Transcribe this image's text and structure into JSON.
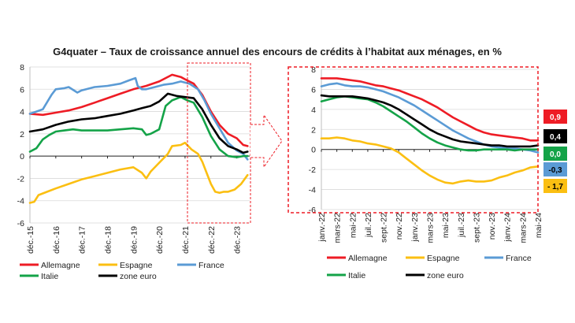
{
  "chart_data": [
    {
      "type": "line",
      "title": "G4quater – Taux de croissance annuel des encours de crédits à l’habitat aux ménages, en %",
      "panel": "left",
      "xlabel": "",
      "ylabel": "",
      "ylim": [
        -6,
        8
      ],
      "yticks": [
        -6,
        -4,
        -2,
        0,
        2,
        4,
        6,
        8
      ],
      "xlim": [
        0,
        102
      ],
      "x_tick_positions": [
        0,
        12,
        24,
        36,
        48,
        60,
        72,
        84,
        96
      ],
      "x_tick_labels": [
        "déc.-15",
        "déc.-16",
        "déc.-17",
        "déc.-18",
        "déc.-19",
        "déc.-20",
        "déc.-21",
        "déc.-22",
        "déc.-23"
      ],
      "series": [
        {
          "name": "Allemagne",
          "color": "#ee1c25",
          "points": [
            [
              0,
              3.8
            ],
            [
              6,
              3.7
            ],
            [
              12,
              3.9
            ],
            [
              18,
              4.1
            ],
            [
              24,
              4.4
            ],
            [
              30,
              4.8
            ],
            [
              36,
              5.2
            ],
            [
              42,
              5.6
            ],
            [
              48,
              6.0
            ],
            [
              54,
              6.3
            ],
            [
              60,
              6.7
            ],
            [
              63,
              7.0
            ],
            [
              66,
              7.3
            ],
            [
              70,
              7.1
            ],
            [
              72,
              6.9
            ],
            [
              76,
              6.5
            ],
            [
              80,
              5.5
            ],
            [
              84,
              4.0
            ],
            [
              88,
              2.8
            ],
            [
              92,
              2.0
            ],
            [
              96,
              1.6
            ],
            [
              99,
              1.0
            ],
            [
              101,
              0.9
            ]
          ]
        },
        {
          "name": "Espagne",
          "color": "#fbbf12",
          "points": [
            [
              0,
              -4.2
            ],
            [
              2,
              -4.1
            ],
            [
              4,
              -3.5
            ],
            [
              8,
              -3.2
            ],
            [
              12,
              -2.9
            ],
            [
              18,
              -2.5
            ],
            [
              24,
              -2.1
            ],
            [
              30,
              -1.8
            ],
            [
              36,
              -1.5
            ],
            [
              42,
              -1.2
            ],
            [
              48,
              -1.0
            ],
            [
              52,
              -1.5
            ],
            [
              54,
              -2.0
            ],
            [
              56,
              -1.4
            ],
            [
              60,
              -0.6
            ],
            [
              64,
              0.2
            ],
            [
              66,
              0.9
            ],
            [
              70,
              1.0
            ],
            [
              72,
              1.2
            ],
            [
              75,
              0.6
            ],
            [
              78,
              0.2
            ],
            [
              80,
              -0.5
            ],
            [
              82,
              -1.5
            ],
            [
              84,
              -2.5
            ],
            [
              86,
              -3.2
            ],
            [
              88,
              -3.3
            ],
            [
              90,
              -3.2
            ],
            [
              92,
              -3.2
            ],
            [
              95,
              -3.0
            ],
            [
              98,
              -2.5
            ],
            [
              101,
              -1.7
            ]
          ]
        },
        {
          "name": "France",
          "color": "#5b9bd5",
          "points": [
            [
              0,
              3.8
            ],
            [
              3,
              4.0
            ],
            [
              6,
              4.2
            ],
            [
              10,
              5.5
            ],
            [
              12,
              6.0
            ],
            [
              16,
              6.1
            ],
            [
              18,
              6.2
            ],
            [
              22,
              5.7
            ],
            [
              24,
              5.9
            ],
            [
              30,
              6.2
            ],
            [
              36,
              6.3
            ],
            [
              42,
              6.5
            ],
            [
              46,
              6.8
            ],
            [
              49,
              7.0
            ],
            [
              50,
              6.3
            ],
            [
              52,
              6.0
            ],
            [
              54,
              6.0
            ],
            [
              58,
              6.2
            ],
            [
              62,
              6.4
            ],
            [
              66,
              6.5
            ],
            [
              70,
              6.7
            ],
            [
              74,
              6.5
            ],
            [
              78,
              6.0
            ],
            [
              81,
              5.0
            ],
            [
              84,
              3.8
            ],
            [
              88,
              2.5
            ],
            [
              92,
              1.2
            ],
            [
              96,
              0.5
            ],
            [
              99,
              0.2
            ],
            [
              101,
              -0.3
            ]
          ]
        },
        {
          "name": "Italie",
          "color": "#14a348",
          "points": [
            [
              0,
              0.4
            ],
            [
              3,
              0.7
            ],
            [
              6,
              1.5
            ],
            [
              9,
              1.9
            ],
            [
              12,
              2.2
            ],
            [
              16,
              2.3
            ],
            [
              20,
              2.4
            ],
            [
              24,
              2.3
            ],
            [
              30,
              2.3
            ],
            [
              36,
              2.3
            ],
            [
              42,
              2.4
            ],
            [
              48,
              2.5
            ],
            [
              52,
              2.4
            ],
            [
              54,
              1.9
            ],
            [
              56,
              2.0
            ],
            [
              60,
              2.4
            ],
            [
              63,
              4.5
            ],
            [
              66,
              5.0
            ],
            [
              70,
              5.3
            ],
            [
              73,
              5.0
            ],
            [
              76,
              4.8
            ],
            [
              80,
              3.5
            ],
            [
              84,
              1.8
            ],
            [
              88,
              0.6
            ],
            [
              92,
              0.0
            ],
            [
              96,
              -0.1
            ],
            [
              99,
              0.0
            ],
            [
              101,
              0.0
            ]
          ]
        },
        {
          "name": "zone euro",
          "color": "#000000",
          "points": [
            [
              0,
              2.2
            ],
            [
              6,
              2.4
            ],
            [
              12,
              2.8
            ],
            [
              18,
              3.1
            ],
            [
              24,
              3.3
            ],
            [
              30,
              3.4
            ],
            [
              36,
              3.6
            ],
            [
              42,
              3.8
            ],
            [
              48,
              4.1
            ],
            [
              52,
              4.3
            ],
            [
              56,
              4.5
            ],
            [
              60,
              4.9
            ],
            [
              64,
              5.6
            ],
            [
              68,
              5.4
            ],
            [
              72,
              5.3
            ],
            [
              76,
              5.2
            ],
            [
              80,
              4.2
            ],
            [
              84,
              2.8
            ],
            [
              88,
              1.6
            ],
            [
              92,
              0.9
            ],
            [
              96,
              0.6
            ],
            [
              99,
              0.3
            ],
            [
              101,
              0.4
            ]
          ]
        }
      ],
      "legend": [
        "Allemagne",
        "Espagne",
        "France",
        "Italie",
        "zone euro"
      ]
    },
    {
      "type": "line",
      "panel": "right",
      "xlabel": "",
      "ylabel": "",
      "ylim": [
        -6,
        8
      ],
      "yticks": [
        -6,
        -4,
        -2,
        0,
        2,
        4,
        6,
        8
      ],
      "xlim": [
        0,
        28
      ],
      "x_tick_positions": [
        0,
        2,
        4,
        6,
        8,
        10,
        12,
        14,
        16,
        18,
        20,
        22,
        24,
        26,
        28
      ],
      "x_tick_labels": [
        "janv.-22",
        "mars-22",
        "mai-22",
        "juil.-22",
        "sept.-22",
        "nov.-22",
        "janv.-23",
        "mars-23",
        "mai-23",
        "juil.-23",
        "sept.-23",
        "nov.-23",
        "janv.-24",
        "mars-24",
        "mai-24"
      ],
      "series": [
        {
          "name": "Allemagne",
          "color": "#ee1c25",
          "last_value": "0,9",
          "values": [
            7.1,
            7.1,
            7.1,
            7.0,
            6.9,
            6.8,
            6.6,
            6.4,
            6.3,
            6.1,
            5.9,
            5.6,
            5.3,
            5.0,
            4.6,
            4.2,
            3.7,
            3.2,
            2.8,
            2.4,
            2.0,
            1.7,
            1.5,
            1.4,
            1.3,
            1.2,
            1.1,
            0.9,
            0.9
          ]
        },
        {
          "name": "Espagne",
          "color": "#fbbf12",
          "last_value": "- 1,7",
          "values": [
            1.1,
            1.1,
            1.2,
            1.1,
            0.9,
            0.8,
            0.6,
            0.5,
            0.3,
            0.1,
            -0.3,
            -0.9,
            -1.5,
            -2.1,
            -2.6,
            -3.0,
            -3.3,
            -3.4,
            -3.2,
            -3.1,
            -3.2,
            -3.2,
            -3.1,
            -2.8,
            -2.6,
            -2.3,
            -2.1,
            -1.8,
            -1.7
          ]
        },
        {
          "name": "France",
          "color": "#5b9bd5",
          "last_value": "-0,3",
          "values": [
            6.3,
            6.5,
            6.6,
            6.4,
            6.3,
            6.3,
            6.2,
            6.0,
            5.8,
            5.5,
            5.2,
            4.8,
            4.4,
            3.9,
            3.4,
            2.9,
            2.4,
            1.9,
            1.5,
            1.1,
            0.8,
            0.5,
            0.3,
            0.2,
            0.1,
            0.1,
            0.0,
            -0.1,
            -0.3
          ]
        },
        {
          "name": "Italie",
          "color": "#14a348",
          "last_value": "0,0",
          "values": [
            4.8,
            5.0,
            5.2,
            5.3,
            5.2,
            5.1,
            5.0,
            4.7,
            4.3,
            3.8,
            3.3,
            2.8,
            2.2,
            1.6,
            1.1,
            0.7,
            0.4,
            0.2,
            0.0,
            -0.1,
            -0.1,
            0.0,
            0.0,
            0.0,
            0.0,
            -0.1,
            0.0,
            0.0,
            0.0
          ]
        },
        {
          "name": "zone euro",
          "color": "#000000",
          "last_value": "0,4",
          "values": [
            5.4,
            5.3,
            5.3,
            5.3,
            5.3,
            5.2,
            5.1,
            4.9,
            4.7,
            4.4,
            4.0,
            3.5,
            3.0,
            2.5,
            2.0,
            1.6,
            1.3,
            1.0,
            0.8,
            0.7,
            0.6,
            0.5,
            0.4,
            0.4,
            0.3,
            0.3,
            0.3,
            0.3,
            0.4
          ]
        }
      ],
      "legend": [
        "Allemagne",
        "Espagne",
        "France",
        "Italie",
        "zone euro"
      ]
    }
  ],
  "badges": [
    {
      "series": "Allemagne",
      "text": "0,9",
      "bg": "#ee1c25",
      "fg": "#ffffff"
    },
    {
      "series": "zone euro",
      "text": "0,4",
      "bg": "#000000",
      "fg": "#ffffff"
    },
    {
      "series": "Italie",
      "text": "0,0",
      "bg": "#14a348",
      "fg": "#ffffff"
    },
    {
      "series": "France",
      "text": "-0,3",
      "bg": "#5b9bd5",
      "fg": "#000000"
    },
    {
      "series": "Espagne",
      "text": "- 1,7",
      "bg": "#fbbf12",
      "fg": "#000000"
    }
  ],
  "colors": {
    "highlight": "#ee1c25",
    "grid": "#d9d9d9",
    "axis": "#222222"
  }
}
